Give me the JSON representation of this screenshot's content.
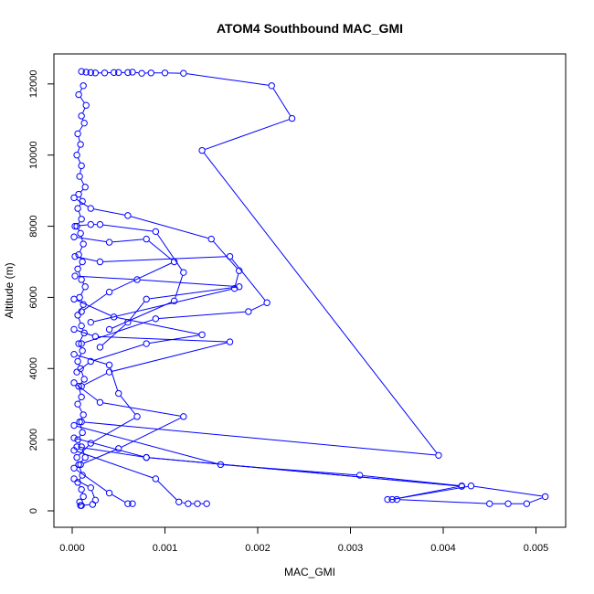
{
  "chart_data": {
    "type": "line",
    "title": "ATOM4 Southbound MAC_GMI",
    "xlabel": "MAC_GMI",
    "ylabel": "Altitude (m)",
    "xlim": [
      0,
      0.0052
    ],
    "ylim": [
      0,
      12500
    ],
    "x_ticks": [
      0,
      0.001,
      0.002,
      0.003,
      0.004,
      0.005
    ],
    "x_tick_labels": [
      "0.000",
      "0.001",
      "0.002",
      "0.003",
      "0.004",
      "0.005"
    ],
    "y_ticks": [
      0,
      2000,
      4000,
      6000,
      8000,
      10000,
      12000
    ],
    "y_tick_labels": [
      "0",
      "2000",
      "4000",
      "6000",
      "8000",
      "10000",
      "12000"
    ],
    "grid": false,
    "marker": "open-circle",
    "series_color": "#0000ff",
    "series": [
      {
        "points": [
          [
            0.00012,
            11950
          ],
          [
            7e-05,
            11700
          ],
          [
            0.00015,
            11400
          ],
          [
            0.0001,
            11100
          ],
          [
            0.00013,
            10900
          ],
          [
            6e-05,
            10600
          ],
          [
            9e-05,
            10300
          ],
          [
            5e-05,
            10000
          ],
          [
            0.0001,
            9700
          ],
          [
            8e-05,
            9400
          ],
          [
            0.00014,
            9100
          ],
          [
            7e-05,
            8900
          ],
          [
            0.00011,
            8700
          ],
          [
            6e-05,
            8500
          ],
          [
            0.0001,
            8200
          ],
          [
            5e-05,
            8000
          ],
          [
            9e-05,
            7800
          ],
          [
            0.00012,
            7500
          ],
          [
            7e-05,
            7200
          ],
          [
            0.00011,
            7000
          ],
          [
            6e-05,
            6800
          ],
          [
            0.0001,
            6500
          ],
          [
            0.00014,
            6300
          ],
          [
            8e-05,
            6000
          ],
          [
            0.00012,
            5800
          ],
          [
            6e-05,
            5500
          ],
          [
            0.0001,
            5200
          ],
          [
            0.00013,
            5000
          ],
          [
            7e-05,
            4700
          ],
          [
            0.00011,
            4500
          ],
          [
            6e-05,
            4200
          ],
          [
            9e-05,
            4000
          ],
          [
            0.00013,
            3700
          ],
          [
            7e-05,
            3500
          ],
          [
            0.0001,
            3200
          ],
          [
            6e-05,
            3000
          ],
          [
            0.00012,
            2700
          ],
          [
            8e-05,
            2500
          ],
          [
            0.00011,
            2200
          ],
          [
            6e-05,
            2000
          ],
          [
            0.0001,
            1800
          ],
          [
            0.00014,
            1500
          ],
          [
            7e-05,
            1300
          ],
          [
            0.00011,
            1000
          ],
          [
            6e-05,
            800
          ],
          [
            0.0001,
            600
          ],
          [
            0.00012,
            400
          ],
          [
            8e-05,
            250
          ],
          [
            0.0001,
            150
          ]
        ]
      },
      {
        "points": [
          [
            0.0001,
            12350
          ],
          [
            0.00015,
            12330
          ],
          [
            0.0002,
            12320
          ],
          [
            0.00025,
            12310
          ],
          [
            0.00035,
            12310
          ],
          [
            0.00045,
            12320
          ],
          [
            0.0005,
            12320
          ],
          [
            0.0006,
            12320
          ],
          [
            0.00065,
            12330
          ],
          [
            0.00075,
            12300
          ],
          [
            0.00085,
            12310
          ],
          [
            0.001,
            12310
          ],
          [
            0.0012,
            12300
          ],
          [
            0.00215,
            11950
          ],
          [
            0.00237,
            11030
          ],
          [
            0.0014,
            10130
          ],
          [
            0.00395,
            1560
          ],
          [
            0.0001,
            2500
          ]
        ]
      },
      {
        "points": [
          [
            2e-05,
            8800
          ],
          [
            0.0002,
            8500
          ],
          [
            0.0006,
            8300
          ],
          [
            0.0015,
            7640
          ],
          [
            0.0018,
            6750
          ],
          [
            0.00175,
            6250
          ],
          [
            0.0002,
            5300
          ]
        ]
      },
      {
        "points": [
          [
            3e-05,
            8000
          ],
          [
            0.0002,
            8050
          ],
          [
            0.0003,
            8050
          ],
          [
            0.0009,
            7850
          ],
          [
            0.0012,
            6700
          ],
          [
            0.0011,
            5900
          ],
          [
            0.0004,
            5100
          ]
        ]
      },
      {
        "points": [
          [
            2e-05,
            7700
          ],
          [
            0.0004,
            7550
          ],
          [
            0.0008,
            7640
          ],
          [
            0.0011,
            7000
          ],
          [
            0.0004,
            6150
          ],
          [
            0.0001,
            5600
          ]
        ]
      },
      {
        "points": [
          [
            3e-05,
            7150
          ],
          [
            0.0003,
            7000
          ],
          [
            0.0017,
            7150
          ],
          [
            0.0021,
            5850
          ],
          [
            0.0019,
            5600
          ],
          [
            0.0009,
            5400
          ],
          [
            0.0001,
            4700
          ]
        ]
      },
      {
        "points": [
          [
            3e-05,
            6600
          ],
          [
            0.0007,
            6500
          ],
          [
            0.0018,
            6300
          ],
          [
            0.0008,
            5950
          ],
          [
            0.0006,
            5300
          ],
          [
            0.0003,
            4600
          ]
        ]
      },
      {
        "points": [
          [
            2e-05,
            5950
          ],
          [
            0.00045,
            5450
          ],
          [
            0.0014,
            4950
          ],
          [
            0.0008,
            4700
          ],
          [
            0.0002,
            4200
          ],
          [
            5e-05,
            3900
          ]
        ]
      },
      {
        "points": [
          [
            2e-05,
            5100
          ],
          [
            0.00025,
            4900
          ],
          [
            0.0017,
            4750
          ],
          [
            0.0004,
            3900
          ],
          [
            0.0001,
            3500
          ]
        ]
      },
      {
        "points": [
          [
            2e-05,
            4400
          ],
          [
            0.0004,
            4100
          ],
          [
            0.0005,
            3300
          ],
          [
            0.0007,
            2650
          ],
          [
            0.0002,
            1900
          ],
          [
            5e-05,
            1500
          ]
        ]
      },
      {
        "points": [
          [
            2e-05,
            3600
          ],
          [
            0.0003,
            3050
          ],
          [
            0.0012,
            2650
          ],
          [
            0.0005,
            1750
          ],
          [
            9e-05,
            1300
          ]
        ]
      },
      {
        "points": [
          [
            2e-05,
            2400
          ],
          [
            0.0016,
            1300
          ],
          [
            0.0031,
            1000
          ],
          [
            0.0042,
            700
          ],
          [
            0.00345,
            320
          ],
          [
            0.0043,
            700
          ],
          [
            0.0051,
            400
          ],
          [
            0.0049,
            200
          ],
          [
            0.0047,
            200
          ],
          [
            0.0045,
            200
          ],
          [
            0.0035,
            320
          ],
          [
            0.0034,
            320
          ]
        ]
      },
      {
        "points": [
          [
            2e-05,
            2050
          ],
          [
            0.0008,
            1500
          ],
          [
            0.0042,
            690
          ],
          [
            0.0008,
            1500
          ],
          [
            5e-05,
            1800
          ]
        ]
      },
      {
        "points": [
          [
            2e-05,
            1200
          ],
          [
            0.0004,
            500
          ],
          [
            0.0006,
            200
          ],
          [
            0.00065,
            200
          ]
        ]
      },
      {
        "points": [
          [
            2e-05,
            1700
          ],
          [
            0.0009,
            900
          ],
          [
            0.00115,
            250
          ],
          [
            0.00125,
            200
          ],
          [
            0.00135,
            200
          ],
          [
            0.00145,
            200
          ]
        ]
      },
      {
        "points": [
          [
            2e-05,
            900
          ],
          [
            0.0002,
            650
          ],
          [
            0.00025,
            300
          ],
          [
            0.00022,
            180
          ],
          [
            9e-05,
            150
          ]
        ]
      }
    ]
  }
}
